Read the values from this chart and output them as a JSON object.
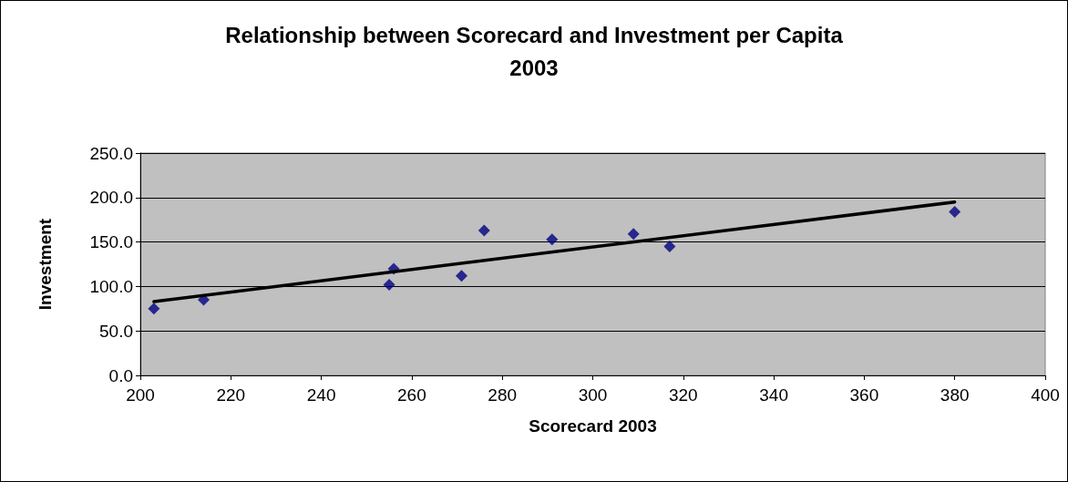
{
  "chart_data": {
    "type": "scatter",
    "title": "Relationship between Scorecard and Investment per Capita\n2003",
    "xlabel": "Scorecard 2003",
    "ylabel": "Investment",
    "series": [
      {
        "color": "#000080",
        "marker": "diamond",
        "x": [
          203,
          214,
          255,
          256,
          271,
          276,
          291,
          309,
          317,
          380
        ],
        "values": [
          75,
          85,
          102,
          120,
          112,
          163,
          153,
          159,
          145,
          184
        ]
      },
      {
        "type": "line",
        "color": "#000000",
        "marker": "none",
        "line_style": "solid",
        "x": [
          203,
          380
        ],
        "values": [
          83,
          195
        ]
      }
    ],
    "xlim": [
      200,
      400
    ],
    "xticks": [
      200,
      220,
      240,
      260,
      280,
      300,
      320,
      340,
      360,
      380,
      400
    ],
    "ylim": [
      0,
      250
    ],
    "yticks": [
      {
        "value": 0,
        "label": "0.0"
      },
      {
        "value": 50,
        "label": "50.0"
      },
      {
        "value": 100,
        "label": "100.0"
      },
      {
        "value": 150,
        "label": "150.0"
      },
      {
        "value": 200,
        "label": "200.0"
      },
      {
        "value": 250,
        "label": "250.0"
      }
    ],
    "grid": "y"
  }
}
